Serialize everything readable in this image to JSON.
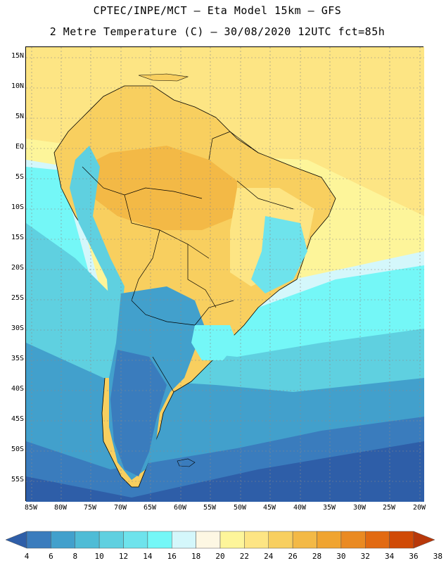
{
  "header": {
    "line1": "CPTEC/INPE/MCT –  Eta Model 15km – GFS",
    "line2": "2 Metre Temperature (C) – 30/08/2020 12UTC fct=85h"
  },
  "axes": {
    "lat_labels": [
      "15N",
      "10N",
      "5N",
      "EQ",
      "5S",
      "10S",
      "15S",
      "20S",
      "25S",
      "30S",
      "35S",
      "40S",
      "45S",
      "50S",
      "55S"
    ],
    "lon_labels": [
      "85W",
      "80W",
      "75W",
      "70W",
      "65W",
      "60W",
      "55W",
      "50W",
      "45W",
      "40W",
      "35W",
      "30W",
      "25W",
      "20W"
    ]
  },
  "colorbar": {
    "labels": [
      "4",
      "6",
      "8",
      "10",
      "12",
      "14",
      "16",
      "18",
      "20",
      "22",
      "24",
      "26",
      "28",
      "30",
      "32",
      "34",
      "36",
      "38"
    ],
    "colors": [
      "#2e5ea8",
      "#3a7cbd",
      "#42a0cc",
      "#4fbcd6",
      "#5fd0e0",
      "#6ee3ec",
      "#74f7f7",
      "#d4f7fb",
      "#fdf7e3",
      "#fdf59a",
      "#fde584",
      "#f8cf5f",
      "#f3b946",
      "#f0a430",
      "#ea8a22",
      "#e26a12",
      "#d04a06",
      "#b8380a"
    ]
  },
  "map": {
    "ocean_colors": {
      "warm": "#fde584",
      "mild": "#fdf59a",
      "cool": "#74f7f7",
      "cold": "#42a0cc",
      "coldest": "#2e5ea8"
    },
    "land_colors": {
      "hot": "#f3b946",
      "warm": "#f8cf5f",
      "mild": "#fde584",
      "cool": "#5fd0e0",
      "cold": "#3a7cbd"
    }
  }
}
